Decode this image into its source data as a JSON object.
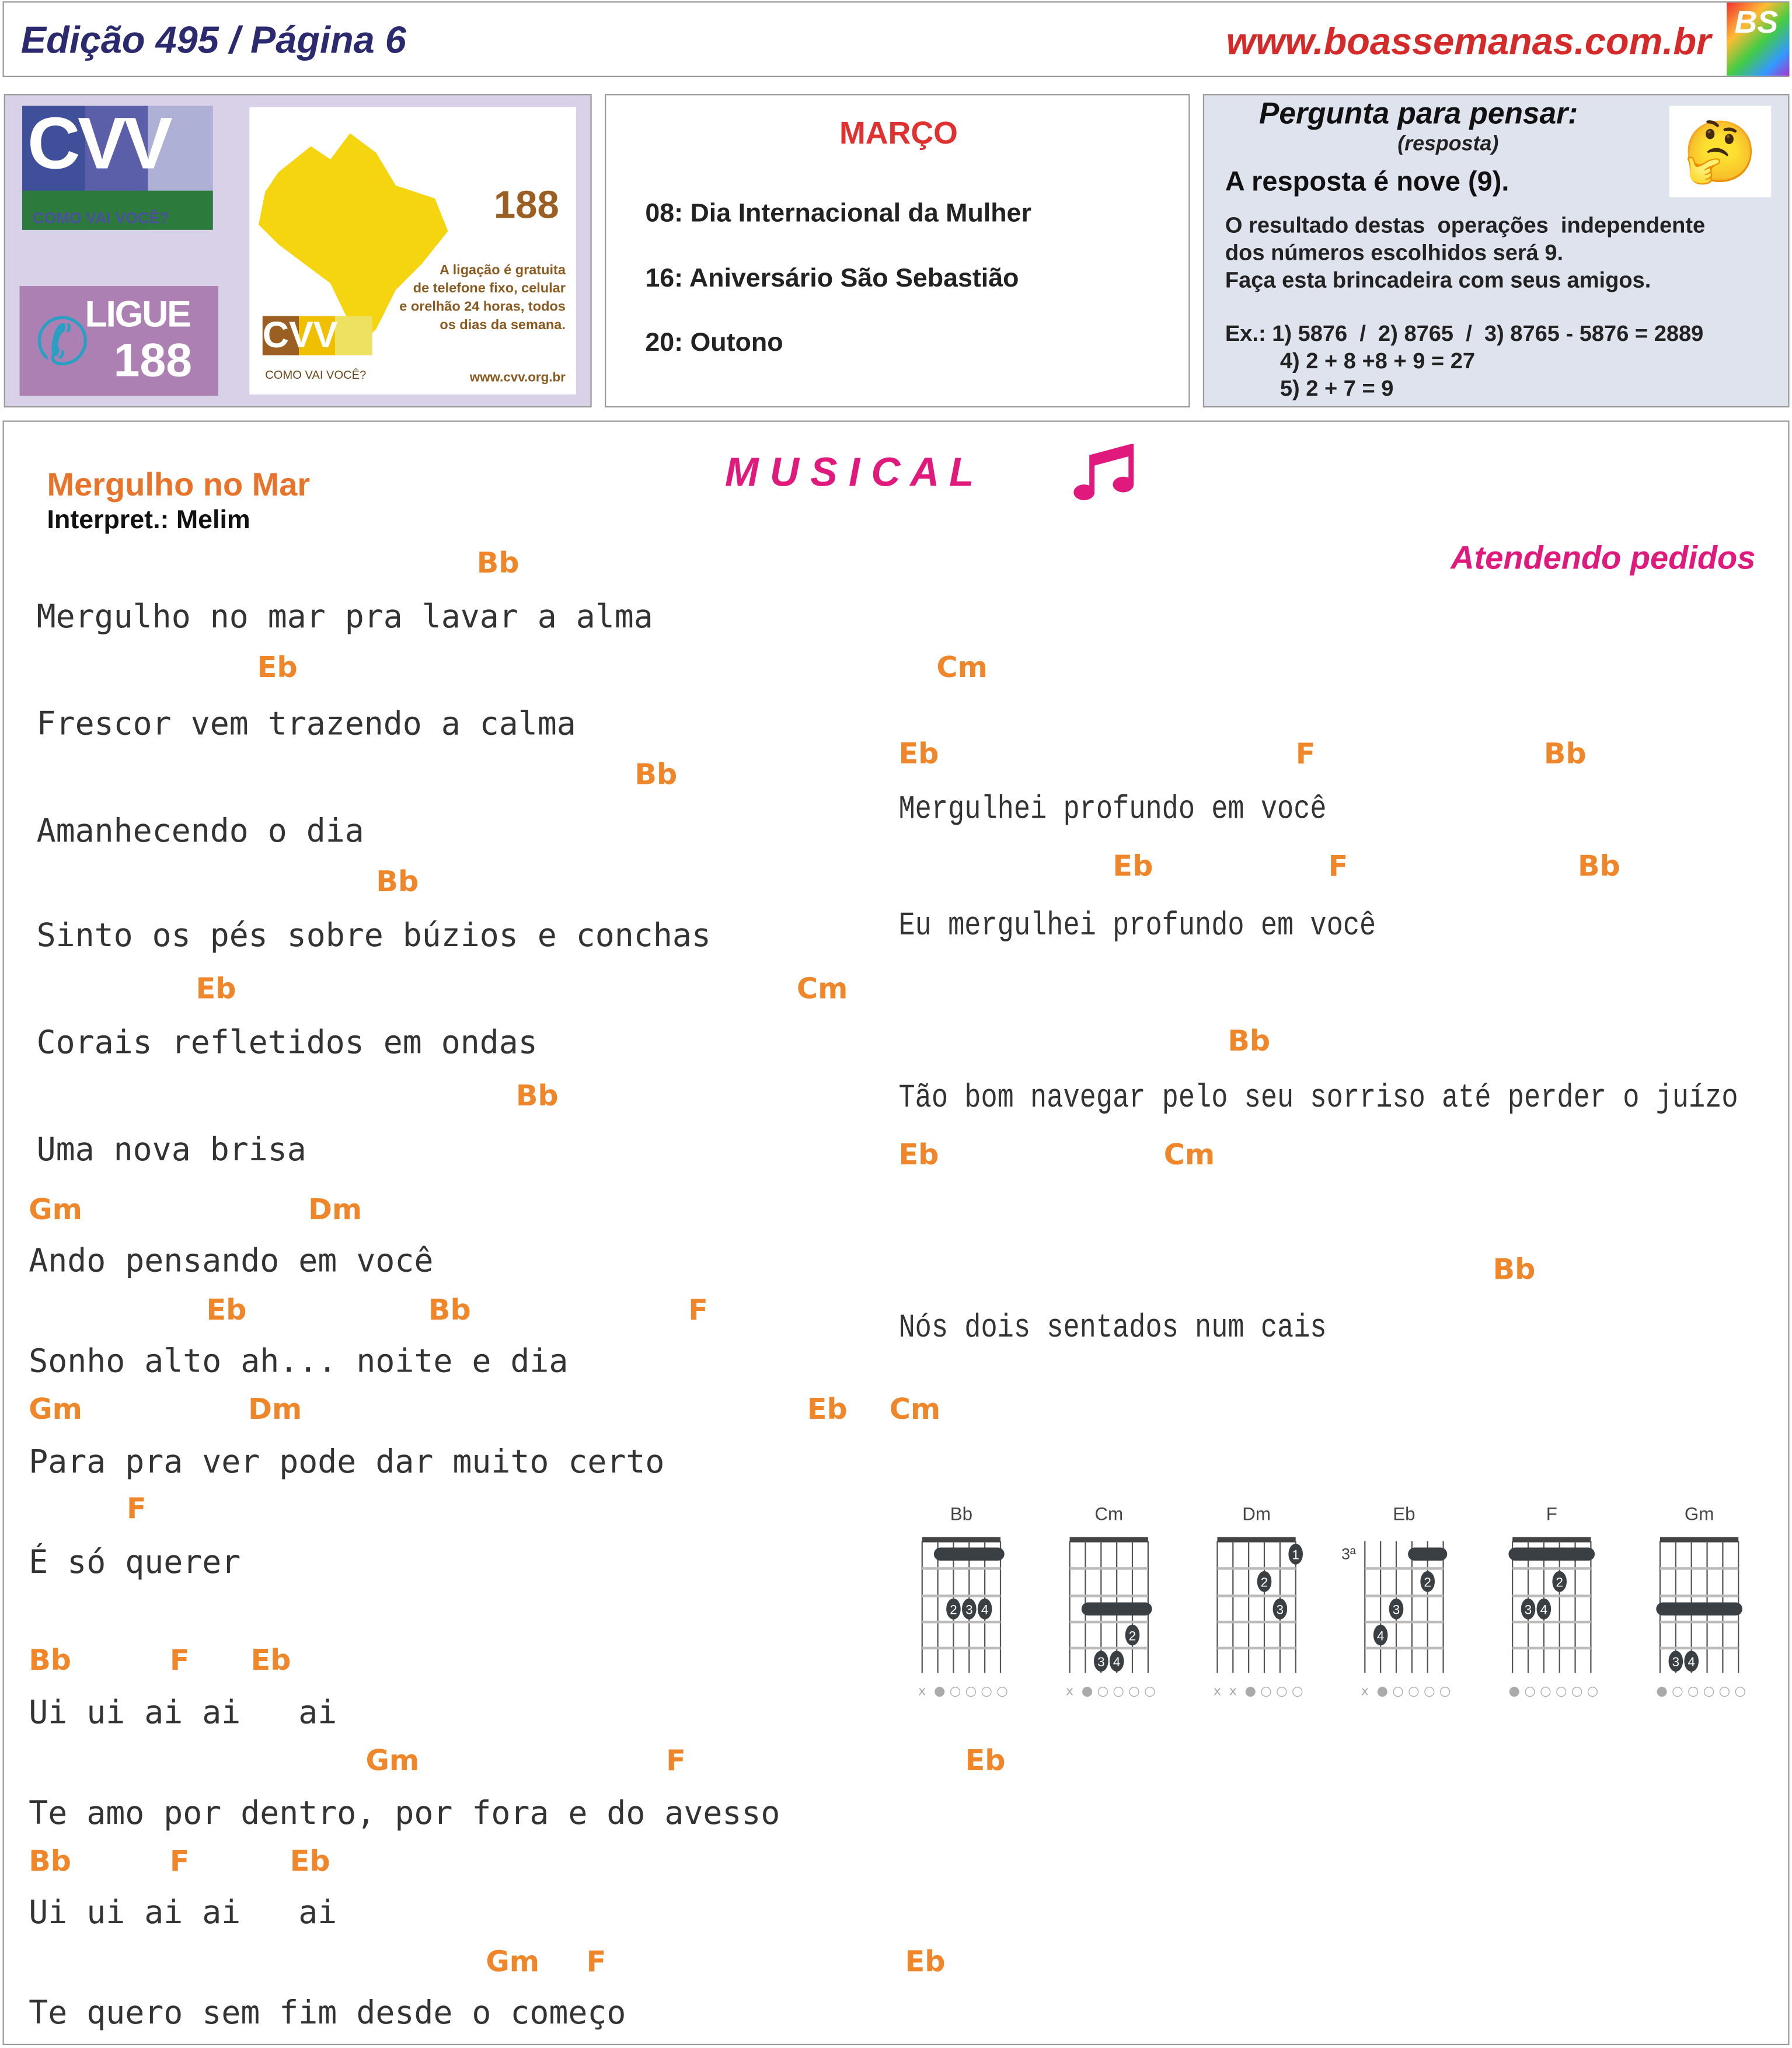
{
  "header": {
    "edition": "Edição 495 / Página 6",
    "url": "www.boassemanas.com.br",
    "logo": "BS"
  },
  "cvv": {
    "logo": "CVV",
    "logo_tagline": "COMO VAI VOCÊ?",
    "ligue": "LIGUE",
    "ligue_number": "188",
    "number": "188",
    "info_lines": [
      "A ligação é gratuita",
      "de telefone fixo, celular",
      "e orelhão 24 horas, todos",
      "os dias da semana."
    ],
    "website": "www.cvv.org.br",
    "small_tagline": "COMO VAI VOCÊ?"
  },
  "calendar": {
    "month": "MARÇO",
    "events": [
      "08: Dia Internacional da Mulher",
      "16: Aniversário São Sebastião",
      "20: Outono"
    ]
  },
  "question": {
    "title": "Pergunta para pensar:",
    "subtitle": "(resposta)",
    "emoji": "🤔",
    "answer": "A resposta é nove (9).",
    "lines": [
      "O resultado destas  operações  independente",
      "dos números escolhidos será 9.",
      "Faça esta brincadeira com seus amigos."
    ],
    "examples": [
      "Ex.: 1) 5876  /  2) 8765  /  3) 8765 - 5876 = 2889",
      "4) 2 + 8 +8 + 9 = 27",
      "5) 2 + 7 = 9"
    ]
  },
  "musical": {
    "title": "M U S I C A L",
    "subtitle": "Atendendo pedidos",
    "song": "Mergulho no Mar",
    "interpret": "Interpret.: Melim"
  },
  "left_chords": [
    "Bb",
    "Eb",
    "Bb",
    "Bb",
    "Eb",
    "Cm",
    "Bb",
    "Gm",
    "Dm",
    "Eb",
    "Bb",
    "F",
    "Gm",
    "Dm",
    "Eb",
    "Cm",
    "F",
    "Bb",
    "F",
    "Eb",
    "Gm",
    "F",
    "Eb",
    "Bb",
    "F",
    "Eb",
    "Gm",
    "F",
    "Eb"
  ],
  "left_lyrics": [
    "Mergulho no mar pra lavar a alma",
    "Frescor vem trazendo a calma",
    "Amanhecendo o dia",
    "Sinto os pés sobre búzios e conchas",
    "Corais refletidos em ondas",
    "Uma nova brisa",
    "Ando pensando em você",
    "Sonho alto ah... noite e dia",
    "Para pra ver pode dar muito certo",
    "É só querer",
    "Ui ui ai ai   ai",
    "Te amo por dentro, por fora e do avesso",
    "Ui ui ai ai   ai",
    "Te quero sem fim desde o começo"
  ],
  "right_chords": [
    "Cm",
    "Eb",
    "F",
    "Bb",
    "Eb",
    "F",
    "Bb",
    "Bb",
    "Eb",
    "Cm",
    "Bb"
  ],
  "right_lyrics": [
    "Mergulhei profundo em você",
    "Eu mergulhei profundo em você",
    "Tão bom navegar pelo seu sorriso até perder o juízo",
    "Nós dois sentados num cais"
  ],
  "diagrams": [
    {
      "name": "Bb",
      "base": "",
      "barre": [
        1,
        1,
        5
      ],
      "dots": [
        [
          2,
          3,
          "2"
        ],
        [
          3,
          3,
          "3"
        ],
        [
          4,
          3,
          "4"
        ]
      ],
      "markers": "x●○○○○"
    },
    {
      "name": "Cm",
      "base": "",
      "barre": [
        3,
        1,
        5
      ],
      "dots": [
        [
          4,
          4,
          "2"
        ],
        [
          2,
          5,
          "3"
        ],
        [
          3,
          5,
          "4"
        ]
      ],
      "markers": "x●○○○○"
    },
    {
      "name": "Dm",
      "base": "",
      "barre": null,
      "dots": [
        [
          5,
          1,
          "1"
        ],
        [
          3,
          2,
          "2"
        ],
        [
          4,
          3,
          "3"
        ]
      ],
      "markers": "xx●○○○"
    },
    {
      "name": "Eb",
      "base": "3ª",
      "barre": [
        1,
        3,
        5
      ],
      "dots": [
        [
          4,
          2,
          "2"
        ],
        [
          2,
          3,
          "3"
        ],
        [
          1,
          4,
          "4"
        ]
      ],
      "markers": "x●○○○○"
    },
    {
      "name": "F",
      "base": "",
      "barre": [
        1,
        0,
        5
      ],
      "dots": [
        [
          3,
          2,
          "2"
        ],
        [
          1,
          3,
          "3"
        ],
        [
          2,
          3,
          "4"
        ]
      ],
      "markers": "●○○○○○"
    },
    {
      "name": "Gm",
      "base": "",
      "barre": [
        3,
        0,
        5
      ],
      "dots": [
        [
          1,
          5,
          "3"
        ],
        [
          2,
          5,
          "4"
        ]
      ],
      "markers": "●○○○○○"
    }
  ],
  "colors": {
    "chord": "#f0862a",
    "accent_pink": "#e0197d",
    "title_orange": "#e8732a",
    "header_navy": "#2b2a6e",
    "url_red": "#d42a2a"
  }
}
